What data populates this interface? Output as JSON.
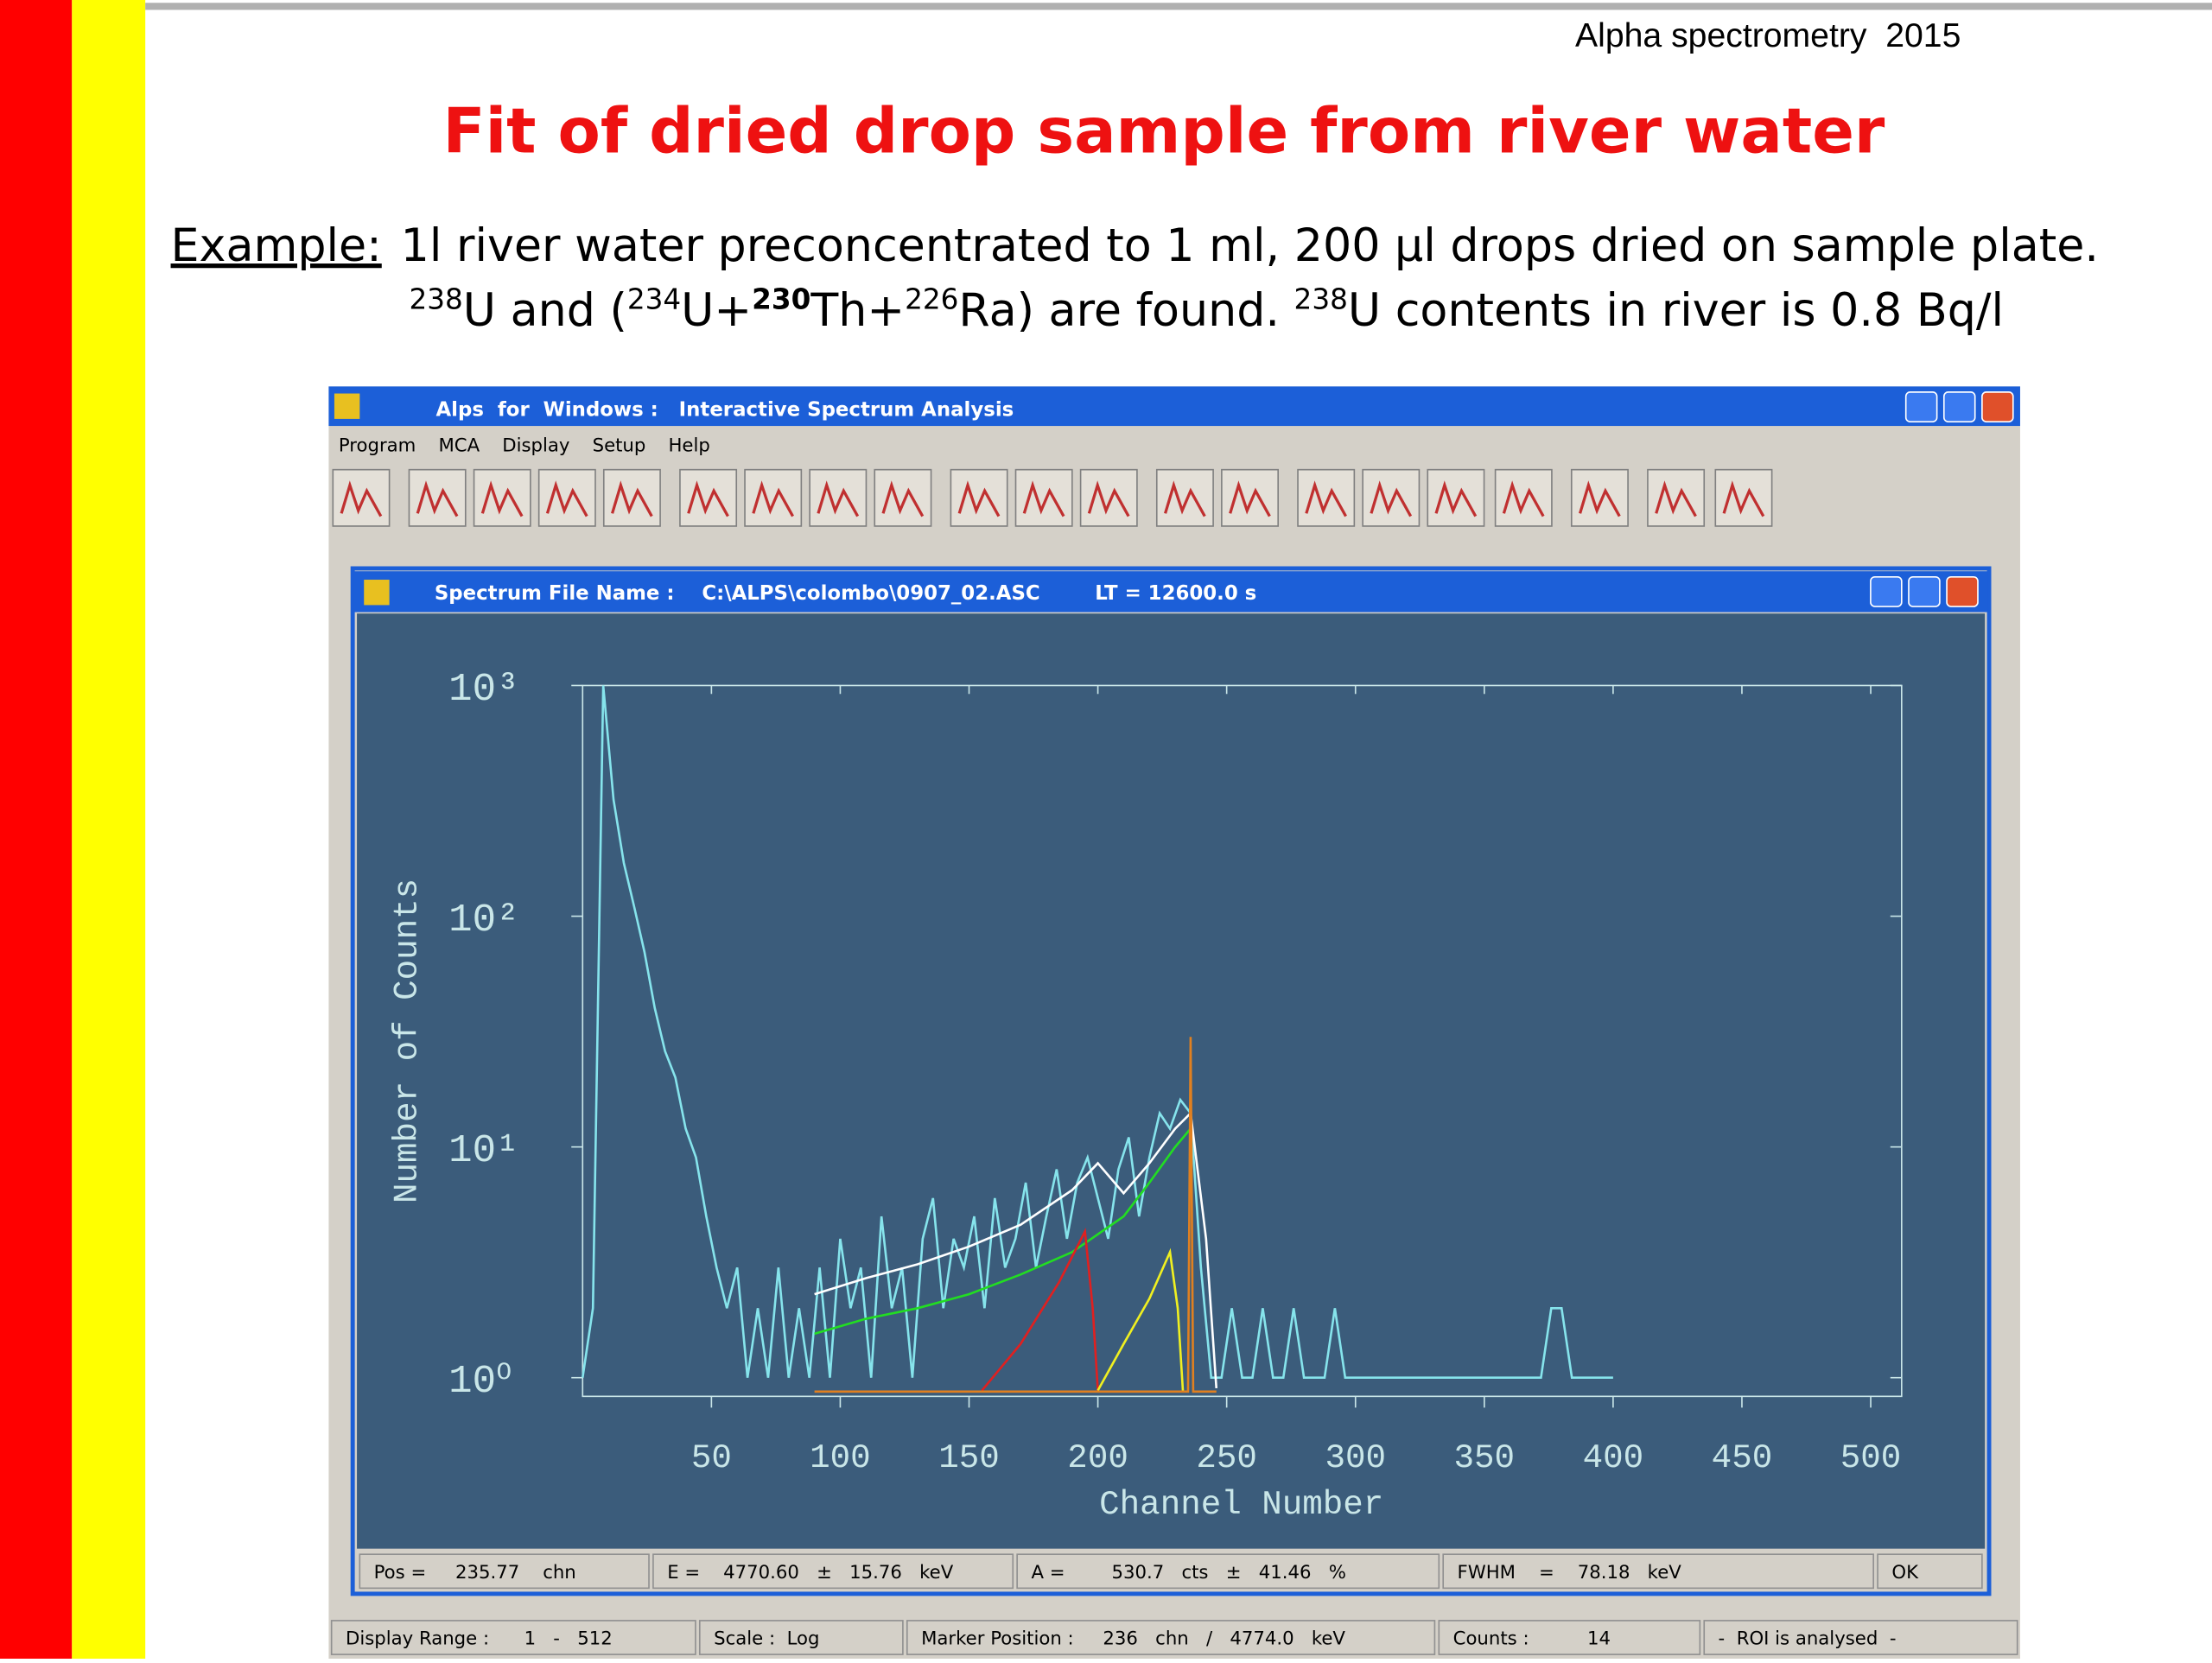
{
  "header": {
    "note": "Alpha spectrometry  2015",
    "title": "Fit of dried drop sample from river water"
  },
  "intro": {
    "label": "Example:",
    "line1": "1l river water preconcentrated to 1 ml, 200 µl drops dried on sample plate.",
    "line2": [
      "238",
      "U and (",
      "234",
      "U+",
      "230",
      "Th+",
      "226",
      "Ra) are found. ",
      "238",
      "U contents in river is 0.8 Bq/l"
    ]
  },
  "app": {
    "title": "Alps  for  Windows :   Interactive Spectrum Analysis",
    "menu": [
      "Program",
      "MCA",
      "Display",
      "Setup",
      "Help"
    ],
    "spectrum_window": {
      "title": "Spectrum File Name :    C:\\ALPS\\colombo\\0907_02.ASC        LT = 12600.0 s",
      "status": [
        "Pos =     235.77    chn",
        "E =    4770.60   ±   15.76   keV",
        "A =        530.7   cts   ±   41.46   %",
        "FWHM    =    78.18   keV",
        "OK"
      ]
    },
    "status": [
      "Display Range :      1   -   512",
      "Scale :  Log",
      "Marker Position :     236   chn   /   4774.0   keV",
      "Counts :          14",
      "-  ROI is analysed  -"
    ]
  },
  "chart_data": {
    "type": "line",
    "x_label": "Channel Number",
    "y_label": "Number of Counts",
    "log_y": true,
    "xlim": [
      0,
      512
    ],
    "ylim": [
      0.83,
      1000
    ],
    "xticks": [
      50,
      100,
      150,
      200,
      250,
      300,
      350,
      400,
      450,
      500
    ],
    "yticks": [
      {
        "value": 1,
        "label": "10⁰"
      },
      {
        "value": 10,
        "label": "10¹"
      },
      {
        "value": 100,
        "label": "10²"
      },
      {
        "value": 1000,
        "label": "10³"
      }
    ],
    "series": [
      {
        "color": "#86e4ec",
        "x": [
          0,
          4,
          8,
          12,
          16,
          20,
          24,
          28,
          32,
          36,
          40,
          44,
          48,
          52,
          56,
          60,
          64,
          68,
          72,
          76,
          80,
          84,
          88,
          92,
          96,
          100,
          104,
          108,
          112,
          116,
          120,
          124,
          128,
          132,
          136,
          140,
          144,
          148,
          152,
          156,
          160,
          164,
          168,
          172,
          176,
          180,
          184,
          188,
          192,
          196,
          200,
          204,
          208,
          212,
          216,
          220,
          224,
          228,
          232,
          236,
          240,
          244,
          248,
          252,
          256,
          260,
          264,
          268,
          272,
          276,
          280,
          284,
          288,
          292,
          296,
          300,
          304,
          308,
          312,
          316,
          320,
          324,
          328,
          332,
          336,
          340,
          344,
          348,
          352,
          356,
          360,
          364,
          368,
          372,
          376,
          380,
          384,
          388,
          392,
          396,
          400
        ],
        "values": [
          1,
          2,
          1000,
          320,
          170,
          110,
          70,
          40,
          26,
          20,
          12,
          9,
          5,
          3,
          2,
          3,
          1,
          2,
          1,
          3,
          1,
          2,
          1,
          3,
          1,
          4,
          2,
          3,
          1,
          5,
          2,
          3,
          1,
          4,
          6,
          2,
          4,
          3,
          5,
          2,
          6,
          3,
          4,
          7,
          3,
          5,
          8,
          4,
          7,
          9,
          6,
          4,
          8,
          11,
          5,
          9,
          14,
          12,
          16,
          14,
          3,
          1,
          1,
          2,
          1,
          1,
          2,
          1,
          1,
          2,
          1,
          1,
          1,
          2,
          1,
          1,
          1,
          1,
          1,
          1,
          1,
          1,
          1,
          1,
          1,
          1,
          1,
          1,
          1,
          1,
          1,
          1,
          1,
          1,
          2,
          2,
          1,
          1,
          1,
          1,
          1
        ]
      },
      {
        "color": "#ffffff",
        "x": [
          90,
          110,
          130,
          150,
          170,
          190,
          200,
          210,
          220,
          230,
          236,
          242,
          246
        ],
        "values": [
          2.3,
          2.7,
          3.1,
          3.7,
          4.6,
          6.5,
          8.5,
          6.3,
          8.5,
          12,
          14,
          4,
          0.9
        ]
      },
      {
        "color": "#22dd22",
        "x": [
          90,
          110,
          130,
          150,
          170,
          190,
          210,
          220,
          230,
          236
        ],
        "values": [
          1.55,
          1.8,
          2,
          2.3,
          2.8,
          3.5,
          5,
          7,
          10,
          12
        ]
      },
      {
        "color": "#e02020",
        "x": [
          155,
          170,
          185,
          195,
          198,
          200
        ],
        "values": [
          0.88,
          1.4,
          2.6,
          4.3,
          2,
          0.88
        ]
      },
      {
        "color": "#f0f020",
        "x": [
          200,
          210,
          220,
          228,
          231,
          233
        ],
        "values": [
          0.88,
          1.4,
          2.2,
          3.5,
          2,
          0.88
        ]
      },
      {
        "color": "#e08020",
        "x": [
          90,
          235,
          236,
          237,
          246
        ],
        "values": [
          0.87,
          0.87,
          30,
          0.87,
          0.87
        ]
      }
    ]
  }
}
